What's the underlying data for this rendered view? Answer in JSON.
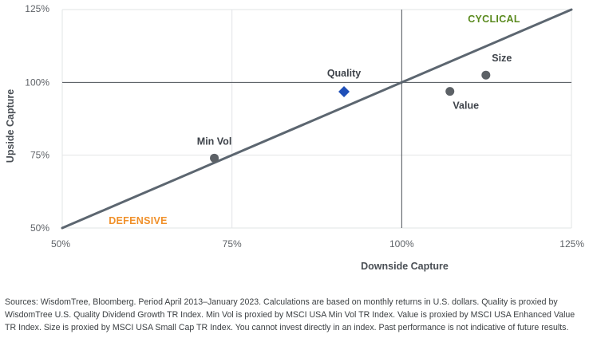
{
  "chart_data": {
    "type": "scatter",
    "xlabel": "Downside Capture",
    "ylabel": "Upside Capture",
    "xlim": [
      0.5,
      1.25
    ],
    "ylim": [
      0.5,
      1.25
    ],
    "x_ticks": [
      0.5,
      0.75,
      1.0,
      1.25
    ],
    "y_ticks": [
      0.5,
      0.75,
      1.0,
      1.25
    ],
    "x_tick_labels": [
      "50%",
      "75%",
      "100%",
      "125%"
    ],
    "y_tick_labels": [
      "50%",
      "75%",
      "100%",
      "125%"
    ],
    "grid": true,
    "reference_lines": {
      "x": 1.0,
      "y": 1.0,
      "diagonal": [
        [
          0.5,
          0.5
        ],
        [
          1.25,
          1.25
        ]
      ]
    },
    "points": [
      {
        "label": "Min Vol",
        "x": 0.724,
        "y": 0.74,
        "marker": "circle",
        "color": "#5c6166"
      },
      {
        "label": "Quality",
        "x": 0.915,
        "y": 0.968,
        "marker": "diamond",
        "color": "#1f4fb8"
      },
      {
        "label": "Value",
        "x": 1.071,
        "y": 0.969,
        "marker": "circle",
        "color": "#5c6166"
      },
      {
        "label": "Size",
        "x": 1.124,
        "y": 1.025,
        "marker": "circle",
        "color": "#5c6166"
      }
    ],
    "annotations": [
      {
        "text": "CYCLICAL",
        "color": "#5a8a1e"
      },
      {
        "text": "DEFENSIVE",
        "color": "#f0902a"
      }
    ]
  },
  "colors": {
    "diagonal": "#5c6670",
    "reference": "#4a4f55",
    "grid": "#e2e4e6"
  },
  "source_note": "Sources: WisdomTree, Bloomberg. Period April 2013–January 2023. Calculations are based on monthly returns in U.S. dollars. Quality is proxied by WisdomTree U.S. Quality Dividend Growth TR Index. Min Vol is proxied by MSCI USA Min Vol TR Index. Value is proxied by MSCI USA Enhanced Value TR Index. Size is proxied by MSCI USA Small Cap TR Index. You cannot invest directly in an index. Past performance is not indicative of future results."
}
